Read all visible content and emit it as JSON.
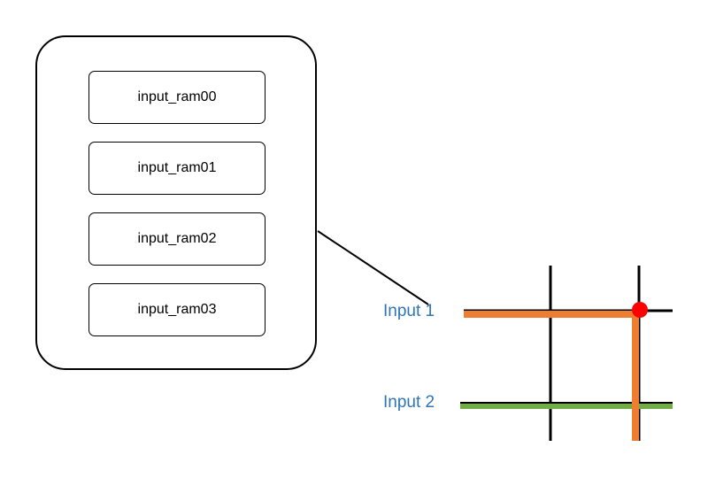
{
  "diagram": {
    "ram_blocks": [
      {
        "label": "input_ram00"
      },
      {
        "label": "input_ram01"
      },
      {
        "label": "input_ram02"
      },
      {
        "label": "input_ram03"
      }
    ],
    "inputs": [
      {
        "label": "Input 1",
        "color": "#ed7d31"
      },
      {
        "label": "Input 2",
        "color": "#70ad47"
      }
    ],
    "label_color": "#2e75b6",
    "junction_color": "#ff0000",
    "grid_line_color": "#000000"
  }
}
